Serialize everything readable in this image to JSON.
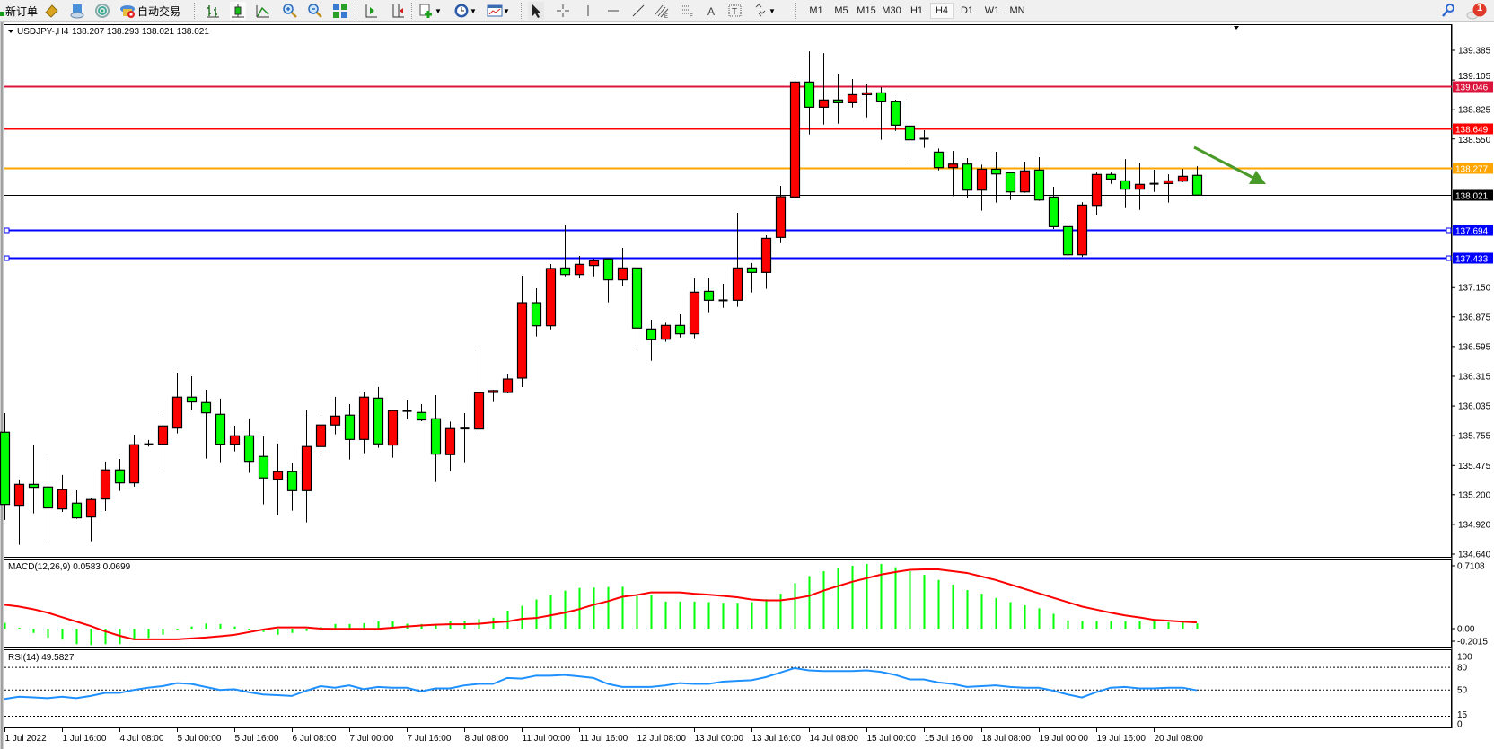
{
  "toolbar": {
    "new_order_label": "新订单",
    "auto_trading_label": "自动交易",
    "icons": [
      "new-order-icon",
      "market-watch-icon",
      "navigator-icon",
      "signals-icon",
      "auto-trading-icon",
      "bar-chart-icon",
      "candlestick-icon",
      "line-chart-icon",
      "zoom-in-icon",
      "zoom-out-icon",
      "tile-windows-icon",
      "auto-scroll-icon",
      "chart-shift-icon",
      "new-chart-icon",
      "periods-icon",
      "indicators-icon",
      "cursor-icon",
      "crosshair-icon",
      "vertical-line-icon",
      "horizontal-line-icon",
      "trendline-icon",
      "equidistant-channel-icon",
      "fibonacci-icon",
      "text-icon",
      "text-label-icon",
      "arrows-icon",
      "search-icon",
      "notifications-icon"
    ],
    "timeframes": [
      "M1",
      "M5",
      "M15",
      "M30",
      "H1",
      "H4",
      "D1",
      "W1",
      "MN"
    ],
    "active_timeframe": "H4",
    "notification_count": "1"
  },
  "chart_header": {
    "symbol_tf": "USDJPY-,H4",
    "ohlc_text": "138.207 138.293 138.021 138.021"
  },
  "colors": {
    "bull": "#ff0000",
    "bear": "#00ff00",
    "macd_hist": "#00ff00",
    "macd_signal": "#ff0000",
    "rsi": "#1e90ff",
    "arrow": "#4a9a2a"
  },
  "chart_data": {
    "type": "candlestick",
    "symbol": "USDJPY-",
    "timeframe": "H4",
    "price_ticks": [
      "139.385",
      "139.105",
      "138.825",
      "138.550",
      "137.150",
      "136.875",
      "136.595",
      "136.315",
      "136.035",
      "135.755",
      "135.475",
      "135.200",
      "134.920",
      "134.640"
    ],
    "ylim": [
      134.64,
      139.385
    ],
    "time_labels": [
      {
        "bar": 1,
        "label": "1 Jul 2022"
      },
      {
        "bar": 5,
        "label": "1 Jul 16:00"
      },
      {
        "bar": 9,
        "label": "4 Jul 08:00"
      },
      {
        "bar": 13,
        "label": "5 Jul 00:00"
      },
      {
        "bar": 17,
        "label": "5 Jul 16:00"
      },
      {
        "bar": 21,
        "label": "6 Jul 08:00"
      },
      {
        "bar": 25,
        "label": "7 Jul 00:00"
      },
      {
        "bar": 29,
        "label": "7 Jul 16:00"
      },
      {
        "bar": 33,
        "label": "8 Jul 08:00"
      },
      {
        "bar": 37,
        "label": "11 Jul 00:00"
      },
      {
        "bar": 41,
        "label": "11 Jul 16:00"
      },
      {
        "bar": 45,
        "label": "12 Jul 08:00"
      },
      {
        "bar": 49,
        "label": "13 Jul 00:00"
      },
      {
        "bar": 53,
        "label": "13 Jul 16:00"
      },
      {
        "bar": 57,
        "label": "14 Jul 08:00"
      },
      {
        "bar": 61,
        "label": "15 Jul 00:00"
      },
      {
        "bar": 65,
        "label": "15 Jul 16:00"
      },
      {
        "bar": 69,
        "label": "18 Jul 08:00"
      },
      {
        "bar": 73,
        "label": "19 Jul 00:00"
      },
      {
        "bar": 77,
        "label": "19 Jul 16:00"
      },
      {
        "bar": 81,
        "label": "20 Jul 08:00"
      }
    ],
    "horizontal_lines": [
      {
        "price": 139.046,
        "label": "139.046",
        "color": "#dc143c"
      },
      {
        "price": 138.649,
        "label": "138.649",
        "color": "#ff0000"
      },
      {
        "price": 138.277,
        "label": "138.277",
        "color": "#ffa500"
      },
      {
        "price": 138.021,
        "label": "138.021",
        "color": "#000000"
      },
      {
        "price": 137.694,
        "label": "137.694",
        "color": "#0000ff"
      },
      {
        "price": 137.433,
        "label": "137.433",
        "color": "#0000ff"
      }
    ],
    "candles_ohlc": [
      [
        135.788,
        135.968,
        134.962,
        135.108
      ],
      [
        135.1,
        135.343,
        134.728,
        135.297
      ],
      [
        135.297,
        135.664,
        135.024,
        135.269
      ],
      [
        135.272,
        135.546,
        134.77,
        135.075
      ],
      [
        135.066,
        135.385,
        135.038,
        135.247
      ],
      [
        135.12,
        135.241,
        134.973,
        134.982
      ],
      [
        134.99,
        135.165,
        134.762,
        135.154
      ],
      [
        135.159,
        135.512,
        135.046,
        135.433
      ],
      [
        135.433,
        135.537,
        135.235,
        135.311
      ],
      [
        135.311,
        135.765,
        135.275,
        135.67
      ],
      [
        135.672,
        135.715,
        135.653,
        135.675
      ],
      [
        135.675,
        135.951,
        135.427,
        135.847
      ],
      [
        135.827,
        136.349,
        135.777,
        136.118
      ],
      [
        136.118,
        136.315,
        135.994,
        136.073
      ],
      [
        136.067,
        136.188,
        135.54,
        135.971
      ],
      [
        135.957,
        136.104,
        135.506,
        135.675
      ],
      [
        135.675,
        135.85,
        135.607,
        135.754
      ],
      [
        135.754,
        135.909,
        135.405,
        135.514
      ],
      [
        135.56,
        135.757,
        135.108,
        135.357
      ],
      [
        135.345,
        135.681,
        135.007,
        135.416
      ],
      [
        135.416,
        135.495,
        135.049,
        135.238
      ],
      [
        135.238,
        135.994,
        134.939,
        135.653
      ],
      [
        135.653,
        135.994,
        135.54,
        135.856
      ],
      [
        135.856,
        136.121,
        135.768,
        135.94
      ],
      [
        135.949,
        136.053,
        135.531,
        135.72
      ],
      [
        135.72,
        136.163,
        135.591,
        136.118
      ],
      [
        136.109,
        136.214,
        135.641,
        135.678
      ],
      [
        135.667,
        135.999,
        135.548,
        135.991
      ],
      [
        135.985,
        136.095,
        135.912,
        135.988
      ],
      [
        135.974,
        136.053,
        135.892,
        135.904
      ],
      [
        135.915,
        136.137,
        135.32,
        135.582
      ],
      [
        135.577,
        135.889,
        135.421,
        135.822
      ],
      [
        135.823,
        135.968,
        135.506,
        135.822
      ],
      [
        135.819,
        136.552,
        135.785,
        136.16
      ],
      [
        136.163,
        136.188,
        136.073,
        136.18
      ],
      [
        136.163,
        136.34,
        136.154,
        136.289
      ],
      [
        136.298,
        137.262,
        136.213,
        137.008
      ],
      [
        137.008,
        137.144,
        136.69,
        136.791
      ],
      [
        136.791,
        137.372,
        136.757,
        137.33
      ],
      [
        137.335,
        137.744,
        137.256,
        137.273
      ],
      [
        137.273,
        137.448,
        137.237,
        137.369
      ],
      [
        137.358,
        137.42,
        137.256,
        137.403
      ],
      [
        137.42,
        137.426,
        137.011,
        137.223
      ],
      [
        137.223,
        137.524,
        137.163,
        137.335
      ],
      [
        137.335,
        137.335,
        136.605,
        136.769
      ],
      [
        136.76,
        136.848,
        136.461,
        136.659
      ],
      [
        136.664,
        136.819,
        136.639,
        136.794
      ],
      [
        136.794,
        136.898,
        136.681,
        136.715
      ],
      [
        136.715,
        137.245,
        136.673,
        137.107
      ],
      [
        137.115,
        137.237,
        136.918,
        137.031
      ],
      [
        137.03,
        137.186,
        136.96,
        137.027
      ],
      [
        137.031,
        137.854,
        136.969,
        137.335
      ],
      [
        137.335,
        137.381,
        137.104,
        137.293
      ],
      [
        137.293,
        137.643,
        137.138,
        137.614
      ],
      [
        137.623,
        138.108,
        137.569,
        138.006
      ],
      [
        138.003,
        139.156,
        137.984,
        139.086
      ],
      [
        139.086,
        139.376,
        138.592,
        138.849
      ],
      [
        138.849,
        139.359,
        138.685,
        138.917
      ],
      [
        138.917,
        139.165,
        138.694,
        138.891
      ],
      [
        138.891,
        139.114,
        138.846,
        138.967
      ],
      [
        138.967,
        139.072,
        138.753,
        138.984
      ],
      [
        138.984,
        139.038,
        138.542,
        138.9
      ],
      [
        138.9,
        138.92,
        138.626,
        138.68
      ],
      [
        138.671,
        138.92,
        138.364,
        138.542
      ],
      [
        138.552,
        138.632,
        138.466,
        138.549
      ],
      [
        138.426,
        138.46,
        138.254,
        138.28
      ],
      [
        138.28,
        138.437,
        138.012,
        138.313
      ],
      [
        138.313,
        138.37,
        137.992,
        138.068
      ],
      [
        138.068,
        138.308,
        137.874,
        138.265
      ],
      [
        138.265,
        138.429,
        137.95,
        138.22
      ],
      [
        138.232,
        138.232,
        137.975,
        138.051
      ],
      [
        138.051,
        138.336,
        138.043,
        138.249
      ],
      [
        138.257,
        138.378,
        137.967,
        137.975
      ],
      [
        138.003,
        138.099,
        137.702,
        137.724
      ],
      [
        137.724,
        137.795,
        137.366,
        137.459
      ],
      [
        137.459,
        137.955,
        137.439,
        137.927
      ],
      [
        137.924,
        138.234,
        137.837,
        138.215
      ],
      [
        138.215,
        138.234,
        138.127,
        138.172
      ],
      [
        138.155,
        138.361,
        137.899,
        138.077
      ],
      [
        138.077,
        138.319,
        137.882,
        138.122
      ],
      [
        138.128,
        138.26,
        138.051,
        138.126
      ],
      [
        138.13,
        138.217,
        137.95,
        138.155
      ],
      [
        138.153,
        138.268,
        138.144,
        138.198
      ],
      [
        138.207,
        138.293,
        138.021,
        138.021
      ]
    ],
    "macd": {
      "label": "MACD(12,26,9) 0.0583 0.0699",
      "ticks": [
        "0.7108",
        "0.00",
        "-0.2015"
      ],
      "ylim": [
        -0.2015,
        0.7108
      ],
      "histogram": [
        0.065,
        0.01,
        -0.048,
        -0.103,
        -0.124,
        -0.175,
        -0.186,
        -0.175,
        -0.175,
        -0.117,
        -0.107,
        -0.069,
        -0.01,
        0.024,
        0.058,
        0.052,
        0.024,
        -0.01,
        -0.038,
        -0.069,
        -0.048,
        -0.027,
        0.017,
        0.052,
        0.052,
        0.062,
        0.082,
        0.082,
        0.055,
        0.052,
        0.052,
        0.082,
        0.086,
        0.107,
        0.124,
        0.203,
        0.258,
        0.33,
        0.381,
        0.43,
        0.46,
        0.464,
        0.471,
        0.474,
        0.368,
        0.378,
        0.306,
        0.306,
        0.306,
        0.299,
        0.292,
        0.292,
        0.299,
        0.333,
        0.395,
        0.515,
        0.595,
        0.649,
        0.691,
        0.711,
        0.732,
        0.732,
        0.694,
        0.649,
        0.608,
        0.55,
        0.498,
        0.436,
        0.395,
        0.347,
        0.299,
        0.265,
        0.23,
        0.168,
        0.093,
        0.086,
        0.086,
        0.086,
        0.082,
        0.082,
        0.082,
        0.072,
        0.072,
        0.0583
      ],
      "signal": [
        0.27,
        0.25,
        0.22,
        0.18,
        0.13,
        0.08,
        0.03,
        -0.03,
        -0.08,
        -0.12,
        -0.12,
        -0.12,
        -0.12,
        -0.11,
        -0.1,
        -0.086,
        -0.07,
        -0.04,
        -0.01,
        0.014,
        0.014,
        0.014,
        0.0,
        -0.003,
        -0.003,
        -0.003,
        -0.003,
        0.01,
        0.024,
        0.035,
        0.045,
        0.05,
        0.05,
        0.055,
        0.07,
        0.08,
        0.11,
        0.12,
        0.15,
        0.18,
        0.22,
        0.27,
        0.31,
        0.36,
        0.38,
        0.41,
        0.41,
        0.41,
        0.395,
        0.385,
        0.37,
        0.355,
        0.33,
        0.32,
        0.32,
        0.34,
        0.37,
        0.43,
        0.48,
        0.53,
        0.57,
        0.61,
        0.64,
        0.665,
        0.67,
        0.67,
        0.65,
        0.63,
        0.59,
        0.55,
        0.5,
        0.45,
        0.4,
        0.35,
        0.3,
        0.25,
        0.215,
        0.18,
        0.15,
        0.127,
        0.1,
        0.09,
        0.079,
        0.0699
      ]
    },
    "rsi": {
      "label": "RSI(14) 49.5827",
      "ticks": [
        "100",
        "80",
        "50",
        "15",
        "0"
      ],
      "levels": [
        80,
        50,
        15
      ],
      "ylim": [
        0,
        100
      ],
      "values": [
        38,
        41,
        40,
        39,
        41,
        39,
        42,
        46,
        46,
        50,
        53,
        55,
        59,
        58,
        54,
        50,
        51,
        47,
        44,
        43,
        42,
        49,
        55,
        53,
        56,
        51,
        54,
        53,
        53,
        48,
        52,
        52,
        56,
        58,
        58,
        66,
        65,
        69,
        69,
        70,
        68,
        66,
        58,
        54,
        54,
        54,
        56,
        59,
        58,
        58,
        61,
        62,
        63,
        67,
        73,
        79,
        76,
        75,
        75,
        75,
        76,
        74,
        70,
        64,
        64,
        60,
        58,
        54,
        55,
        56,
        54,
        53,
        53,
        49,
        44,
        40,
        47,
        53,
        54,
        52,
        52,
        53,
        53,
        49.5827
      ]
    }
  }
}
